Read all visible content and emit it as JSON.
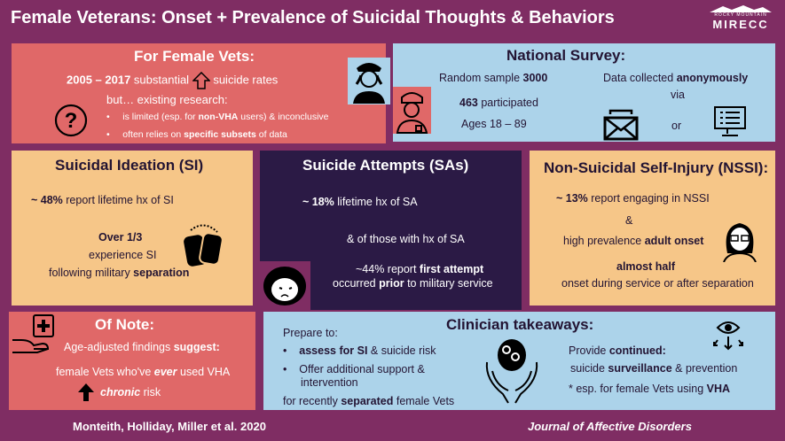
{
  "title": "Female Veterans: Onset + Prevalence of Suicidal Thoughts & Behaviors",
  "logo": {
    "top": "ROCKY MOUNTAIN",
    "bottom": "MIRECC"
  },
  "female_vets": {
    "heading": "For Female Vets:",
    "line1_a": "2005 – 2017",
    "line1_b": "substantial",
    "line1_c": "suicide rates",
    "line2": "but… existing research:",
    "bullet1": {
      "a": "is limited  (esp. for ",
      "b": "non-VHA",
      "c": " users) & inconclusive"
    },
    "bullet2": {
      "a": "often relies on ",
      "b": "specific subsets",
      "c": " of data"
    }
  },
  "survey": {
    "heading": "National Survey:",
    "sample_a": "Random sample ",
    "sample_b": "3000",
    "part_a": "463",
    "part_b": " participated",
    "ages": "Ages 18 – 89",
    "data_a": "Data collected ",
    "data_b": "anonymously",
    "via": "via",
    "or": "or"
  },
  "si": {
    "heading": "Suicidal Ideation (SI)",
    "stat_a": "~ 48%",
    "stat_b": " report lifetime hx of SI",
    "l1": "Over 1/3",
    "l2": "experience SI",
    "l3_a": "following military ",
    "l3_b": "separation"
  },
  "sa": {
    "heading": "Suicide Attempts (SAs)",
    "stat_a": "~ 18%",
    "stat_b": " lifetime hx of SA",
    "l2": "& of those with hx of SA",
    "l3_a": "~44% report ",
    "l3_b": "first attempt",
    "l4_a": "occurred ",
    "l4_b": "prior",
    "l4_c": " to military service"
  },
  "nssi": {
    "heading": "Non-Suicidal Self-Injury (NSSI):",
    "stat_a": "~ 13%",
    "stat_b": " report engaging in NSSI",
    "amp": "&",
    "l3_a": "high prevalence ",
    "l3_b": "adult onset",
    "l4": "almost half",
    "l5": "onset during service or after separation"
  },
  "note": {
    "heading": "Of Note:",
    "l1_a": "Age-adjusted findings ",
    "l1_b": "suggest:",
    "l2_a": "female Vets who've ",
    "l2_b": "ever",
    "l2_c": " used VHA",
    "l3_a": "chronic",
    "l3_b": " risk"
  },
  "clin": {
    "heading": "Clinician takeaways:",
    "prepare": "Prepare to:",
    "b1_a": "assess for SI",
    "b1_b": " & suicide risk",
    "b2_l1": "Offer additional support &",
    "b2_l2": "intervention",
    "recent_a": "for recently ",
    "recent_b": "separated",
    "recent_c": " female Vets",
    "provide_a": "Provide ",
    "provide_b": "continued:",
    "surv_a": "suicide ",
    "surv_b": "surveillance",
    "surv_c": " & prevention",
    "esp_a": "* esp. for female Vets using ",
    "esp_b": "VHA"
  },
  "footer": {
    "authors": "Monteith, Holliday, Miller et al. 2020",
    "journal": "Journal of Affective Disorders"
  },
  "colors": {
    "background": "#7f2d63",
    "salmon": "#e06868",
    "blue": "#acd3ea",
    "tan": "#f6c688",
    "dark": "#2b1a45"
  }
}
